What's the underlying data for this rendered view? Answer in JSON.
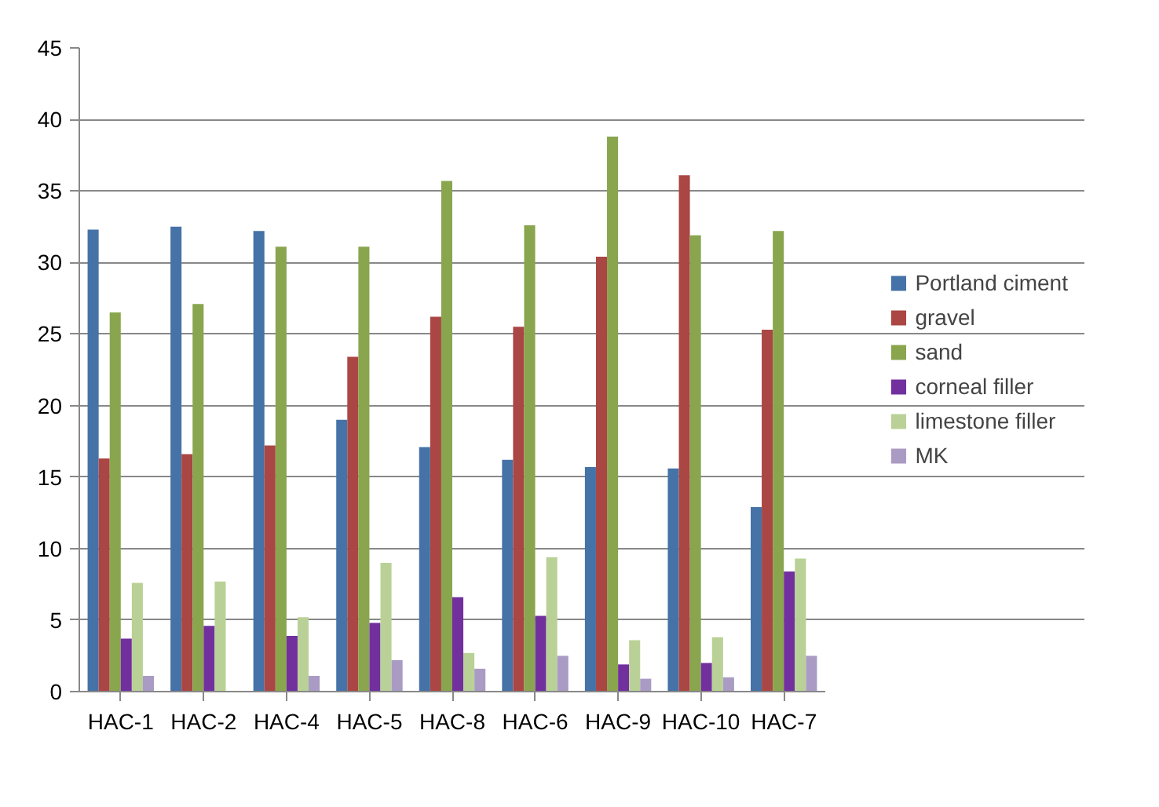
{
  "chart_data": {
    "type": "bar",
    "categories": [
      "HAC-1",
      "HAC-2",
      "HAC-4",
      "HAC-5",
      "HAC-8",
      "HAC-6",
      "HAC-9",
      "HAC-10",
      "HAC-7"
    ],
    "series": [
      {
        "name": "Portland ciment",
        "color": "#4572a7",
        "values": [
          32.3,
          32.5,
          32.2,
          19.0,
          17.1,
          16.2,
          15.7,
          15.6,
          12.9
        ]
      },
      {
        "name": "gravel",
        "color": "#aa4643",
        "values": [
          16.3,
          16.6,
          17.2,
          23.4,
          26.2,
          25.5,
          30.4,
          36.1,
          25.3
        ]
      },
      {
        "name": "sand",
        "color": "#89a54e",
        "values": [
          26.5,
          27.1,
          31.1,
          31.1,
          35.7,
          32.6,
          38.8,
          31.9,
          32.2
        ]
      },
      {
        "name": "corneal filler",
        "color": "#71309e",
        "values": [
          3.7,
          4.6,
          3.9,
          4.8,
          6.6,
          5.3,
          1.9,
          2.0,
          8.4
        ]
      },
      {
        "name": "limestone filler",
        "color": "#b9d196",
        "values": [
          7.6,
          7.7,
          5.2,
          9.0,
          2.7,
          9.4,
          3.6,
          3.8,
          9.3
        ]
      },
      {
        "name": "MK",
        "color": "#a99bc4",
        "values": [
          1.1,
          null,
          1.1,
          2.2,
          1.6,
          2.5,
          0.9,
          1.0,
          2.5
        ]
      }
    ],
    "ylim": [
      0,
      45
    ],
    "yticks": [
      0,
      5,
      10,
      15,
      20,
      25,
      30,
      35,
      40,
      45
    ],
    "grid": "y",
    "legend": "right"
  }
}
